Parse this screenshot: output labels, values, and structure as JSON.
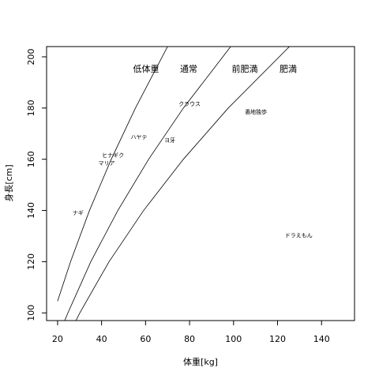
{
  "chart_data": {
    "type": "scatter",
    "xlabel": "体重[kg]",
    "ylabel": "身長[cm]",
    "xlim": [
      15,
      155
    ],
    "ylim": [
      97,
      204
    ],
    "xticks": [
      20,
      40,
      60,
      80,
      100,
      120,
      140
    ],
    "yticks": [
      100,
      120,
      140,
      160,
      180,
      200
    ],
    "annotations": [
      "低体重",
      "通常",
      "前肥満",
      "肥満"
    ],
    "curves": [
      {
        "x": [
          20,
          25.9,
          34.5,
          44.4,
          55.4,
          70
        ],
        "y": [
          104.6,
          120,
          140,
          160,
          180,
          204
        ]
      },
      {
        "x": [
          23.2,
          24.7,
          35.1,
          47.4,
          61.4,
          77.2,
          98.7
        ],
        "y": [
          96.9,
          100,
          120,
          140,
          160,
          180,
          204
        ]
      },
      {
        "x": [
          28.3,
          30.1,
          43.4,
          59.1,
          77.2,
          97.6,
          125.4
        ],
        "y": [
          96.9,
          100,
          120,
          140,
          160,
          180,
          204
        ]
      }
    ],
    "points": {
      "labels": [
        "ナギ",
        "ヒナギク",
        "マリア",
        "ハヤテ",
        "ヨ牙",
        "クラウス",
        "愚地独歩",
        "ドラえもん"
      ],
      "x": [
        29.3,
        45.2,
        42.3,
        57.0,
        71.0,
        80.0,
        110.2,
        129.6
      ],
      "y": [
        138.9,
        161.4,
        158.3,
        168.5,
        167.3,
        181.5,
        178.4,
        130.2
      ]
    }
  }
}
